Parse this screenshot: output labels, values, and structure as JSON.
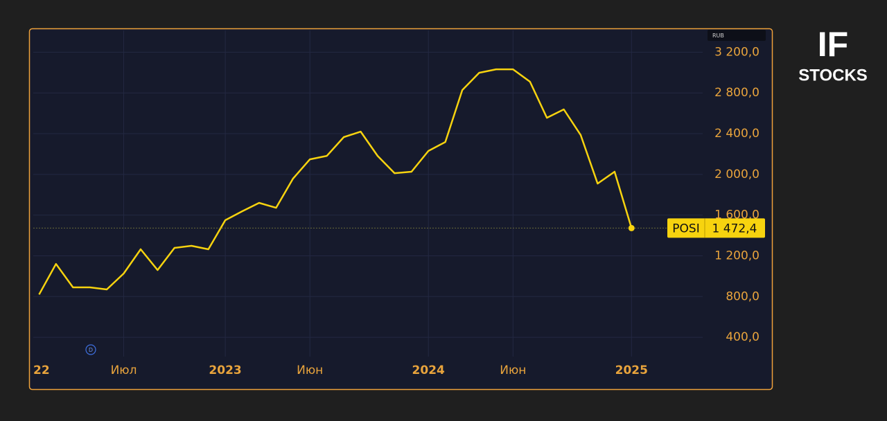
{
  "chart_data": {
    "type": "line",
    "currency": "RUB",
    "event_marker": "D",
    "x": [
      "2022-02",
      "2022-03",
      "2022-04",
      "2022-05",
      "2022-06",
      "2022-07",
      "2022-08",
      "2022-09",
      "2022-10",
      "2022-11",
      "2022-12",
      "2023-01",
      "2023-02",
      "2023-03",
      "2023-04",
      "2023-05",
      "2023-06",
      "2023-07",
      "2023-08",
      "2023-09",
      "2023-10",
      "2023-11",
      "2023-12",
      "2024-01",
      "2024-02",
      "2024-03",
      "2024-04",
      "2024-05",
      "2024-06",
      "2024-07",
      "2024-08",
      "2024-09",
      "2024-10",
      "2024-11",
      "2024-12",
      "2025-01"
    ],
    "series": [
      {
        "name": "POSI",
        "color": "#f7d30f",
        "values": [
          820,
          1120,
          890,
          890,
          870,
          1026,
          1264,
          1060,
          1278,
          1298,
          1264,
          1550,
          1638,
          1720,
          1672,
          1958,
          2148,
          2182,
          2366,
          2420,
          2182,
          2012,
          2026,
          2230,
          2318,
          2828,
          2998,
          3032,
          3032,
          2910,
          2556,
          2638,
          2386,
          1910,
          2026,
          1472.4
        ],
        "value_labels": [
          null,
          null,
          null,
          null,
          null,
          null,
          null,
          null,
          null,
          null,
          null,
          null,
          null,
          null,
          null,
          null,
          null,
          null,
          null,
          null,
          null,
          null,
          null,
          null,
          null,
          null,
          null,
          null,
          null,
          null,
          null,
          null,
          null,
          null,
          null,
          "1 472,4"
        ]
      }
    ],
    "xlim": [
      "2022-01",
      "2025-05"
    ],
    "xticks": [
      {
        "value": "2022-01",
        "label": "22"
      },
      {
        "value": "2022-07",
        "label": "Июл"
      },
      {
        "value": "2023-01",
        "label": "2023"
      },
      {
        "value": "2023-06",
        "label": "Июн"
      },
      {
        "value": "2024-01",
        "label": "2024"
      },
      {
        "value": "2024-06",
        "label": "Июн"
      },
      {
        "value": "2025-01",
        "label": "2025"
      }
    ],
    "ylim": [
      210,
      3400
    ],
    "yticks": [
      {
        "value": 400,
        "label": "400,0"
      },
      {
        "value": 800,
        "label": "800,0"
      },
      {
        "value": 1200,
        "label": "1 200,0"
      },
      {
        "value": 1600,
        "label": "1 600,0"
      },
      {
        "value": 2000,
        "label": "2 000,0"
      },
      {
        "value": 2400,
        "label": "2 400,0"
      },
      {
        "value": 2800,
        "label": "2 800,0"
      },
      {
        "value": 3200,
        "label": "3 200,0"
      }
    ],
    "grid": true
  },
  "logo": {
    "line1": "IF",
    "line2": "STOCKS"
  }
}
